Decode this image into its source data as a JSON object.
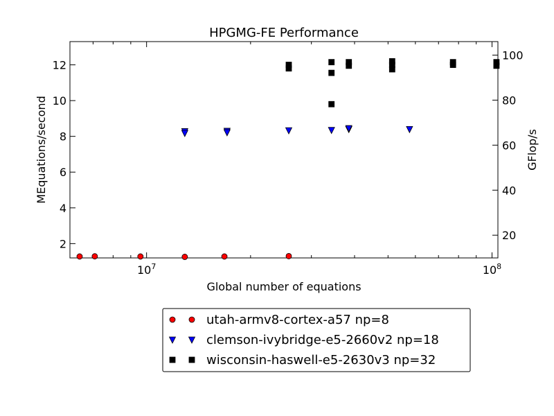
{
  "chart_data": {
    "type": "scatter",
    "title": "HPGMG-FE Performance",
    "xlabel": "Global number of equations",
    "ylabel": "MEquations/second",
    "ylabel_right": "GFlop/s",
    "x_scale": "log",
    "xlim": [
      6000000,
      104000000
    ],
    "ylim": [
      1.2,
      13.3
    ],
    "ylim_right": [
      9.9,
      106
    ],
    "x_tick_labels": [
      {
        "value": 10000000,
        "base": "10",
        "exp": "7"
      },
      {
        "value": 100000000,
        "base": "10",
        "exp": "8"
      }
    ],
    "y_ticks": [
      2,
      4,
      6,
      8,
      10,
      12
    ],
    "y_right_ticks": [
      20,
      40,
      60,
      80,
      100
    ],
    "grid": false,
    "legend_position": "below plot",
    "series": [
      {
        "name": "utah-armv8-cortex-a57 np=8",
        "marker": "circle",
        "color": "#ff0000",
        "points": [
          [
            6400000,
            1.28
          ],
          [
            7080000,
            1.29
          ],
          [
            9600000,
            1.28
          ],
          [
            12900000,
            1.26
          ],
          [
            16800000,
            1.28
          ],
          [
            25800000,
            1.3
          ]
        ]
      },
      {
        "name": "clemson-ivybridge-e5-2660v2 np=18",
        "marker": "triangle-down",
        "color": "#0000ff",
        "points": [
          [
            12900000,
            8.28
          ],
          [
            12900000,
            8.18
          ],
          [
            17100000,
            8.3
          ],
          [
            17100000,
            8.22
          ],
          [
            25800000,
            8.33
          ],
          [
            34300000,
            8.35
          ],
          [
            38500000,
            8.4
          ],
          [
            38500000,
            8.45
          ],
          [
            57700000,
            8.4
          ]
        ]
      },
      {
        "name": "wisconsin-haswell-e5-2630v3 np=32",
        "marker": "square",
        "color": "#000000",
        "points": [
          [
            25800000,
            12.0
          ],
          [
            25800000,
            11.8
          ],
          [
            34300000,
            12.15
          ],
          [
            34300000,
            11.55
          ],
          [
            34300000,
            9.8
          ],
          [
            38500000,
            12.15
          ],
          [
            38500000,
            11.95
          ],
          [
            51400000,
            12.2
          ],
          [
            51400000,
            12.0
          ],
          [
            51400000,
            11.75
          ],
          [
            77100000,
            12.15
          ],
          [
            77100000,
            12.0
          ],
          [
            103000000,
            12.15
          ],
          [
            103000000,
            11.95
          ]
        ]
      }
    ]
  }
}
